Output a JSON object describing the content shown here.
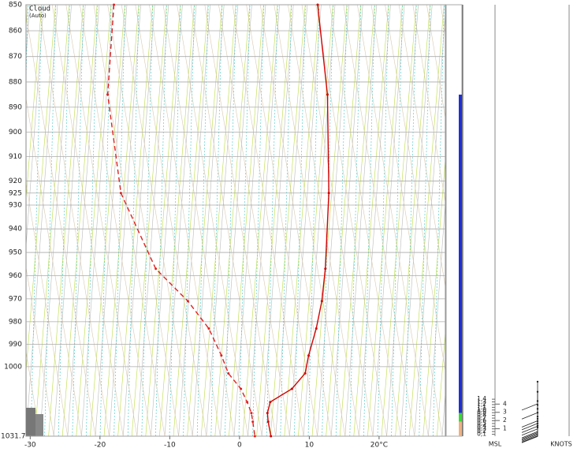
{
  "chart_data": {
    "type": "line",
    "title": "Cloud",
    "subtitle": "(Auto)",
    "pressure": [
      850,
      885,
      925,
      957,
      971,
      983,
      995,
      1003,
      1010,
      1016,
      1021,
      1025,
      1031.7
    ],
    "series": [
      {
        "color": "#d40000",
        "dashed": false,
        "values": [
          11.2,
          12.6,
          12.8,
          12.3,
          11.8,
          11.0,
          9.9,
          9.4,
          7.5,
          4.4,
          4.0,
          4.1,
          4.5
        ]
      },
      {
        "color": "#e02020",
        "dashed": true,
        "values": [
          -18.0,
          -18.9,
          -17.0,
          -12.0,
          -7.4,
          -4.4,
          -2.6,
          -1.6,
          0.2,
          1.1,
          1.7,
          1.9,
          2.2
        ]
      }
    ],
    "ylim": [
      850,
      1031.7
    ],
    "log_y": true,
    "yticks": [
      850,
      860,
      870,
      880,
      890,
      900,
      910,
      920,
      925,
      930,
      940,
      950,
      960,
      970,
      980,
      990,
      1000,
      1031.7
    ],
    "xlim": [
      -30.6,
      29.5
    ],
    "xticks": [
      -30,
      -20,
      -10,
      0,
      10,
      {
        "value": 20,
        "label": "20°C"
      }
    ],
    "grid": true,
    "cloud_layers": [
      {
        "color": "#1f2fd8",
        "top": 885,
        "base": 1021
      },
      {
        "color": "#33dd33",
        "top": 1021,
        "base": 1025
      },
      {
        "color": "#f0b080",
        "top": 1025,
        "base": 1031.7
      }
    ],
    "altitude": {
      "ylim": [
        0,
        1.4
      ],
      "yticks": [
        {
          "value": 1.4,
          "label": "1,4"
        },
        {
          "value": 1.3,
          "label": "1,3"
        },
        {
          "value": 1.2,
          "label": "1,2"
        },
        {
          "value": 1.1,
          "label": "1,1"
        },
        {
          "value": 1.0,
          "label": "1,0"
        },
        {
          "value": 0.9,
          "label": "0,9"
        },
        {
          "value": 0.8,
          "label": "0,8"
        },
        {
          "value": 0.7,
          "label": "0,7"
        },
        {
          "value": 0.6,
          "label": "0,6"
        },
        {
          "value": 0.5,
          "label": "0,5"
        },
        {
          "value": 0.4,
          "label": "0,4"
        },
        {
          "value": 0.3,
          "label": "0,3"
        },
        {
          "value": 0.2,
          "label": "0,2"
        },
        {
          "value": 0.1,
          "label": "0,1"
        }
      ],
      "ft_ticks": [
        {
          "value": 0.305,
          "label": "1"
        },
        {
          "value": 0.61,
          "label": "2"
        },
        {
          "value": 0.914,
          "label": "3"
        },
        {
          "value": 1.219,
          "label": "4"
        }
      ],
      "wind_levels": [
        1.23,
        0.9,
        0.6,
        0.5,
        0.4,
        0.3,
        0.2,
        0.16,
        0.12,
        0.08,
        0.04,
        0.02
      ],
      "label": "MSL",
      "wind_label": "KNOTS"
    }
  }
}
